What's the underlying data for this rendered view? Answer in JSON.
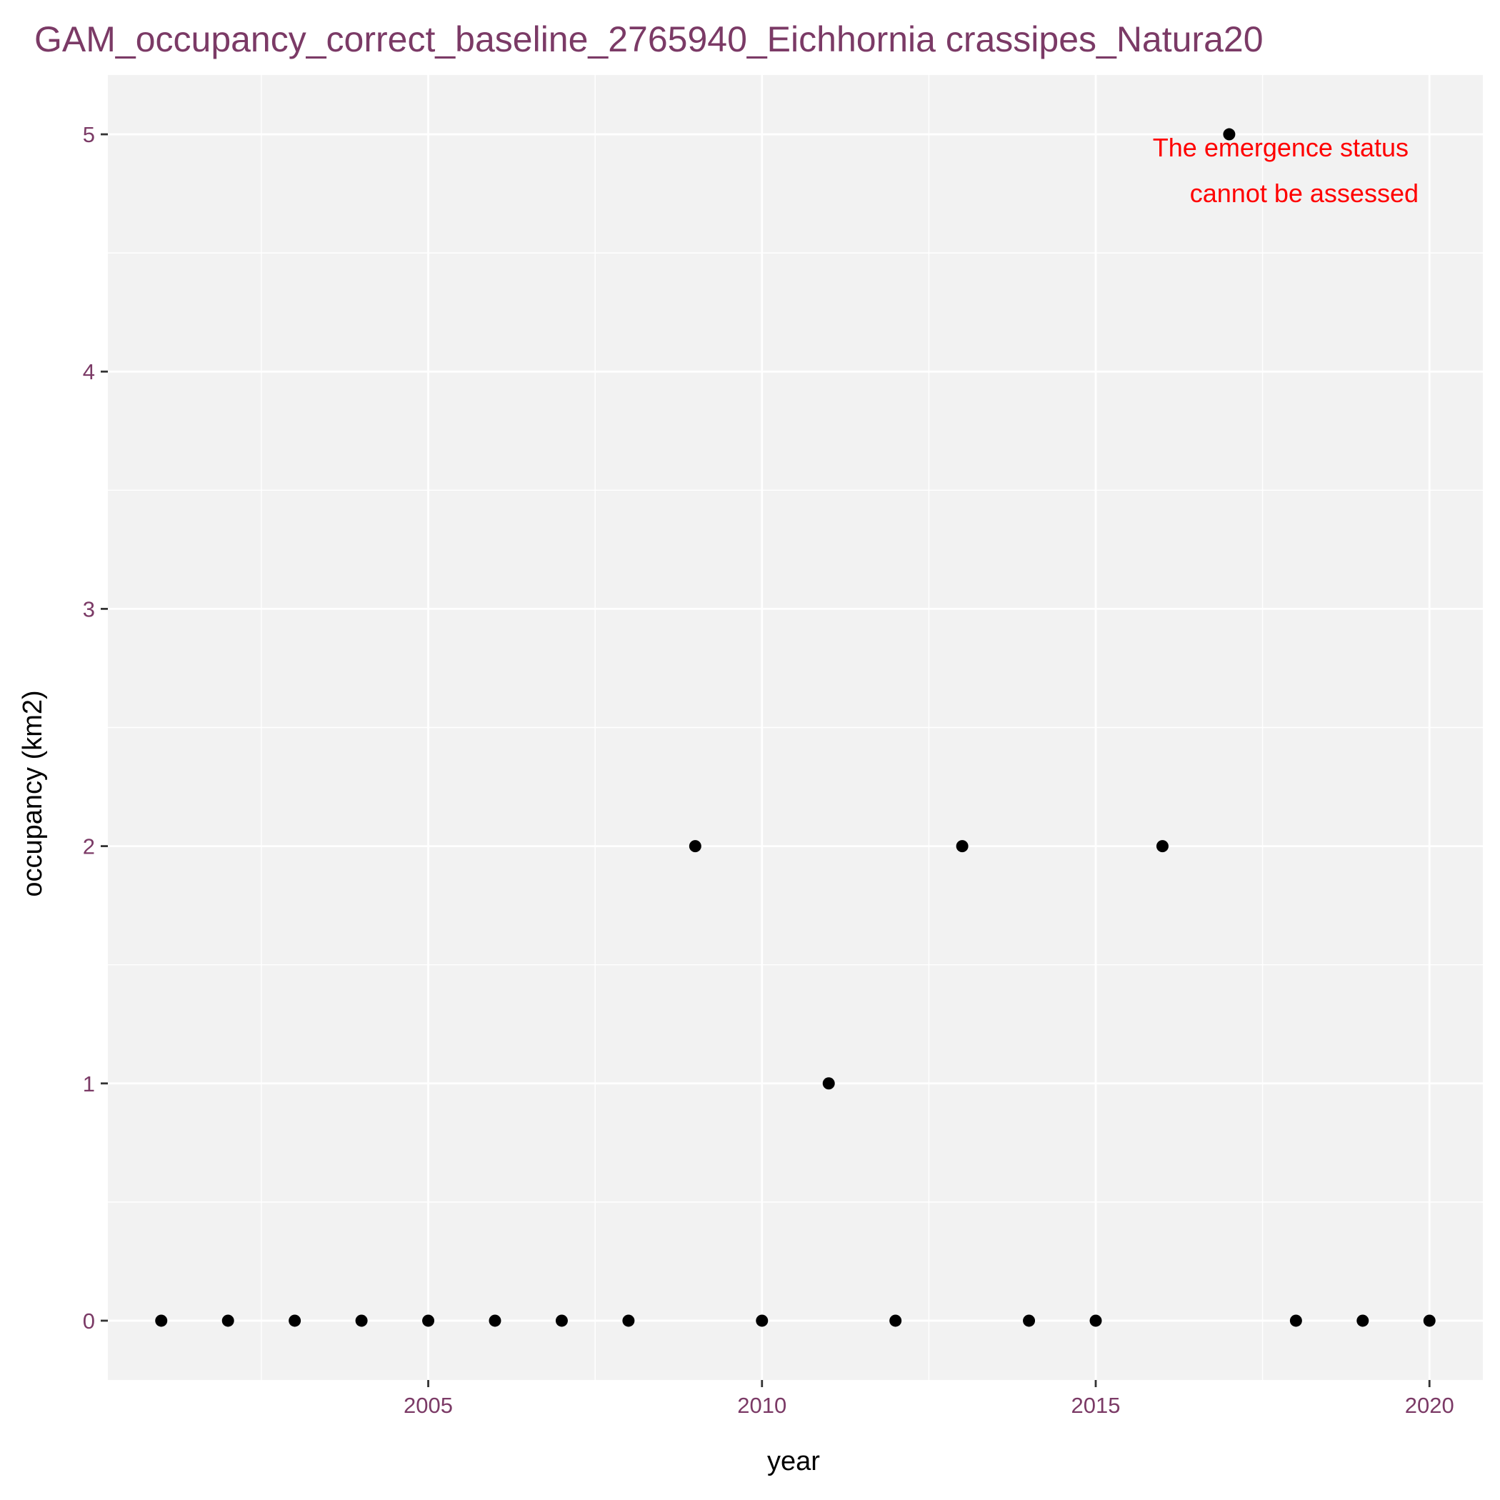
{
  "chart_data": {
    "type": "scatter",
    "title": "GAM_occupancy_correct_baseline_2765940_Eichhornia crassipes_Natura20",
    "xlabel": "year",
    "ylabel": "occupancy (km2)",
    "xlim": [
      2000.2,
      2020.8
    ],
    "ylim": [
      -0.25,
      5.25
    ],
    "x_ticks": [
      2005,
      2010,
      2015,
      2020
    ],
    "x_minor_ticks": [
      2002.5,
      2007.5,
      2012.5,
      2017.5
    ],
    "y_ticks": [
      0,
      1,
      2,
      3,
      4,
      5
    ],
    "y_minor_ticks": [
      0.5,
      1.5,
      2.5,
      3.5,
      4.5
    ],
    "grid": true,
    "legend": "none",
    "x": [
      2001,
      2002,
      2003,
      2004,
      2005,
      2006,
      2007,
      2008,
      2009,
      2010,
      2011,
      2012,
      2013,
      2014,
      2015,
      2016,
      2017,
      2018,
      2019,
      2020
    ],
    "y": [
      0,
      0,
      0,
      0,
      0,
      0,
      0,
      0,
      2,
      0,
      1,
      0,
      2,
      0,
      0,
      2,
      5,
      0,
      0,
      0
    ],
    "annotation": {
      "lines": [
        "The emergence status",
        "cannot be assessed"
      ],
      "color": "#ff0000"
    },
    "colors": {
      "panel": "#f2f2f2",
      "grid": "#ffffff",
      "point": "#000000",
      "tick_text": "#7b3a66",
      "title": "#7b3a66"
    }
  }
}
